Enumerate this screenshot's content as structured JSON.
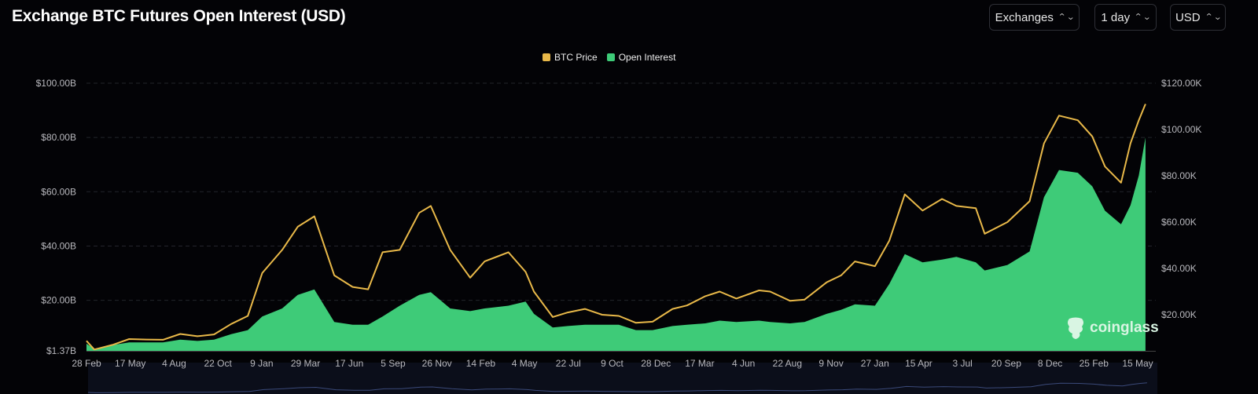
{
  "header": {
    "title": "Exchange BTC Futures Open Interest (USD)"
  },
  "controls": [
    {
      "label": "Exchanges",
      "icon": "chevron-up-down-icon"
    },
    {
      "label": "1 day",
      "icon": "chevron-up-down-icon"
    },
    {
      "label": "USD",
      "icon": "chevron-up-down-icon"
    }
  ],
  "watermark": "coinglass",
  "colors": {
    "btc_price": "#e9b949",
    "open_interest": "#3ecb78",
    "background": "#030306",
    "grid": "#23242b"
  },
  "chart_data": {
    "type": "area+line",
    "title": "Exchange BTC Futures Open Interest (USD)",
    "legend": {
      "position": "top-center",
      "entries": [
        "BTC Price",
        "Open Interest"
      ]
    },
    "grid": true,
    "left_axis": {
      "ticks": [
        "$1.37B",
        "$20.00B",
        "$40.00B",
        "$60.00B",
        "$80.00B",
        "$100.00B"
      ],
      "values": [
        1.37,
        20,
        40,
        60,
        80,
        100
      ],
      "range": [
        1.37,
        100
      ],
      "unit": "B USD"
    },
    "right_axis": {
      "ticks": [
        "$20.00K",
        "$40.00K",
        "$60.00K",
        "$80.00K",
        "$100.00K",
        "$120.00K"
      ],
      "values": [
        20,
        40,
        60,
        80,
        100,
        120
      ],
      "range": [
        0,
        120
      ],
      "unit": "K USD"
    },
    "x_ticks": [
      "28 Feb",
      "17 May",
      "4 Aug",
      "22 Oct",
      "9 Jan",
      "29 Mar",
      "17 Jun",
      "5 Sep",
      "26 Nov",
      "14 Feb",
      "4 May",
      "22 Jul",
      "9 Oct",
      "28 Dec",
      "17 Mar",
      "4 Jun",
      "22 Aug",
      "9 Nov",
      "27 Jan",
      "15 Apr",
      "3 Jul",
      "20 Sep",
      "8 Dec",
      "25 Feb",
      "15 May"
    ],
    "x": [
      "2020-02-28",
      "2020-03-13",
      "2020-04-15",
      "2020-05-15",
      "2020-06-15",
      "2020-07-15",
      "2020-08-15",
      "2020-09-15",
      "2020-10-15",
      "2020-11-15",
      "2020-12-15",
      "2021-01-10",
      "2021-02-15",
      "2021-03-15",
      "2021-04-14",
      "2021-05-20",
      "2021-06-22",
      "2021-07-20",
      "2021-08-15",
      "2021-09-15",
      "2021-10-20",
      "2021-11-10",
      "2021-12-15",
      "2022-01-20",
      "2022-02-15",
      "2022-03-30",
      "2022-04-30",
      "2022-05-15",
      "2022-06-18",
      "2022-07-15",
      "2022-08-15",
      "2022-09-15",
      "2022-10-15",
      "2022-11-15",
      "2022-12-15",
      "2023-01-20",
      "2023-02-15",
      "2023-03-20",
      "2023-04-15",
      "2023-05-15",
      "2023-06-25",
      "2023-07-15",
      "2023-08-20",
      "2023-09-15",
      "2023-10-25",
      "2023-11-20",
      "2023-12-15",
      "2024-01-20",
      "2024-02-15",
      "2024-03-14",
      "2024-04-15",
      "2024-05-20",
      "2024-06-15",
      "2024-07-20",
      "2024-08-05",
      "2024-09-15",
      "2024-10-25",
      "2024-11-20",
      "2024-12-17",
      "2025-01-20",
      "2025-02-15",
      "2025-03-10",
      "2025-04-08",
      "2025-04-25",
      "2025-05-10",
      "2025-05-22"
    ],
    "series": [
      {
        "name": "BTC Price",
        "axis": "right",
        "unit": "K USD",
        "values": [
          8.7,
          5.0,
          7.0,
          9.5,
          9.3,
          9.2,
          11.7,
          10.7,
          11.5,
          16.0,
          19.5,
          38.0,
          48.0,
          58.0,
          62.5,
          37.0,
          32.0,
          31.0,
          47.0,
          48.0,
          64.0,
          67.0,
          48.0,
          36.0,
          43.0,
          47.0,
          38.5,
          30.0,
          19.0,
          21.0,
          22.5,
          20.0,
          19.5,
          16.5,
          17.0,
          22.5,
          24.0,
          28.0,
          30.0,
          27.0,
          30.5,
          30.0,
          26.0,
          26.5,
          34.0,
          37.0,
          43.0,
          41.0,
          52.0,
          72.0,
          65.0,
          70.0,
          67.0,
          66.0,
          55.0,
          60.0,
          69.0,
          94.0,
          106.0,
          104.0,
          97.0,
          84.0,
          77.0,
          94.0,
          104.0,
          111.0
        ]
      },
      {
        "name": "Open Interest",
        "axis": "left",
        "unit": "B USD",
        "values": [
          4.0,
          2.0,
          3.5,
          4.5,
          4.5,
          4.5,
          5.5,
          5.0,
          5.5,
          7.5,
          9.0,
          14.0,
          17.0,
          22.0,
          24.0,
          12.0,
          11.0,
          11.0,
          14.0,
          18.0,
          22.0,
          23.0,
          17.0,
          16.0,
          17.0,
          18.0,
          19.5,
          15.0,
          10.0,
          10.5,
          11.0,
          11.0,
          11.0,
          9.0,
          9.0,
          10.5,
          11.0,
          11.5,
          12.5,
          12.0,
          12.5,
          12.0,
          11.5,
          12.0,
          15.0,
          16.5,
          18.5,
          18.0,
          26.0,
          37.0,
          34.0,
          35.0,
          36.0,
          34.0,
          31.0,
          33.0,
          38.0,
          58.0,
          68.0,
          67.0,
          62.0,
          53.0,
          48.0,
          55.0,
          66.0,
          80.0
        ]
      }
    ]
  }
}
